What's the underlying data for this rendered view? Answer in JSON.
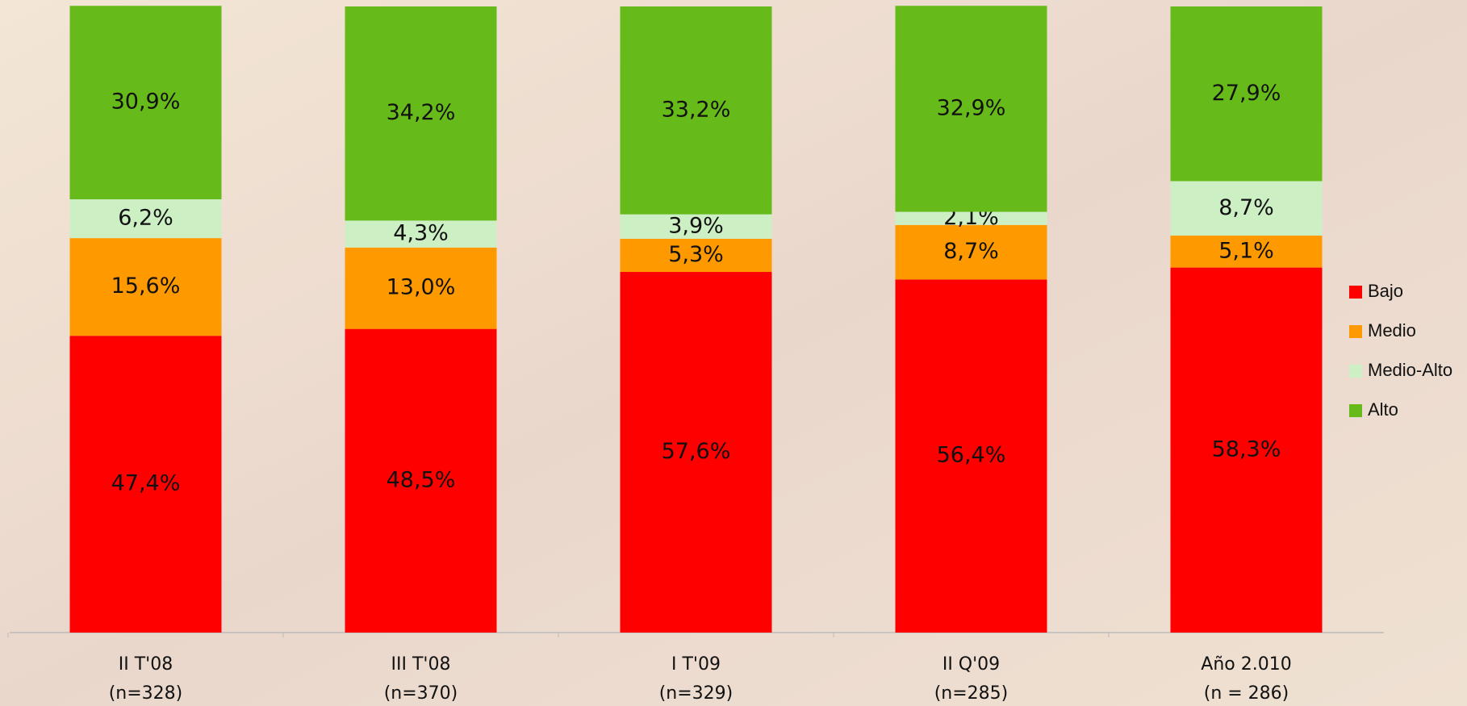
{
  "chart_data": {
    "type": "stacked_bar",
    "categories": [
      "II T'08",
      "III T'08",
      "I T'09",
      "II Q'09",
      "Año 2.010"
    ],
    "sample_sizes": [
      "(n=328)",
      "(n=370)",
      "(n=329)",
      "(n=285)",
      "(n = 286)"
    ],
    "ylim": [
      0,
      100
    ],
    "legend": "right",
    "series": [
      {
        "name": "Bajo",
        "color": "#ff0000",
        "values": [
          47.4,
          48.5,
          57.6,
          56.4,
          58.3
        ],
        "value_labels": [
          "47,4%",
          "48,5%",
          "57,6%",
          "56,4%",
          "58,3%"
        ]
      },
      {
        "name": "Medio",
        "color": "#ff9900",
        "values": [
          15.6,
          13.0,
          5.3,
          8.7,
          5.1
        ],
        "value_labels": [
          "15,6%",
          "13,0%",
          "5,3%",
          "8,7%",
          "5,1%"
        ]
      },
      {
        "name": "Medio-Alto",
        "color": "#ccefc4",
        "values": [
          6.2,
          4.3,
          3.9,
          2.1,
          8.7
        ],
        "value_labels": [
          "6,2%",
          "4,3%",
          "3,9%",
          "2,1%",
          "8,7%"
        ]
      },
      {
        "name": "Alto",
        "color": "#66bb1a",
        "values": [
          30.9,
          34.2,
          33.2,
          32.9,
          27.9
        ],
        "value_labels": [
          "30,9%",
          "34,2%",
          "33,2%",
          "32,9%",
          "27,9%"
        ]
      }
    ]
  }
}
